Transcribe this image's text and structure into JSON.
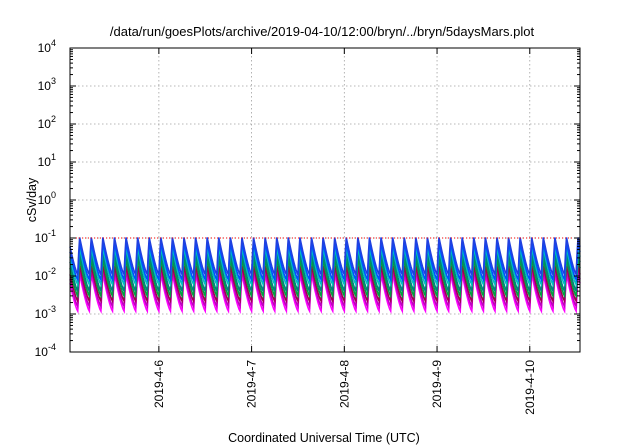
{
  "chart_data": {
    "type": "line",
    "title": "/data/run/goesPlots/archive/2019-04-10/12:00/bryn/../bryn/5daysMars.plot",
    "xlabel": "Coordinated Universal Time (UTC)",
    "ylabel": "cSv/day",
    "y_scale": "log",
    "ylim": [
      0.0001,
      10000
    ],
    "y_ticks": [
      {
        "value": 0.0001,
        "base": "10",
        "exp": "-4"
      },
      {
        "value": 0.001,
        "base": "10",
        "exp": "-3"
      },
      {
        "value": 0.01,
        "base": "10",
        "exp": "-2"
      },
      {
        "value": 0.1,
        "base": "10",
        "exp": "-1"
      },
      {
        "value": 1,
        "base": "10",
        "exp": "0"
      },
      {
        "value": 10,
        "base": "10",
        "exp": "1"
      },
      {
        "value": 100,
        "base": "10",
        "exp": "2"
      },
      {
        "value": 1000,
        "base": "10",
        "exp": "3"
      },
      {
        "value": 10000,
        "base": "10",
        "exp": "4"
      }
    ],
    "xlim": [
      "2019-04-05T01:00",
      "2019-04-10T13:00"
    ],
    "x_ticks": [
      "2019-4-6",
      "2019-4-7",
      "2019-4-8",
      "2019-4-9",
      "2019-4-10"
    ],
    "grid": true,
    "reference_line": {
      "value": 0.1,
      "color": "#ff0000",
      "style": "dotted"
    },
    "pattern": {
      "period_hours": 3,
      "start": "2019-04-05T00:00"
    },
    "series": [
      {
        "color": "#ff00ff",
        "min": 0.0012,
        "max": 0.012
      },
      {
        "color": "#c000c0",
        "min": 0.0016,
        "max": 0.015
      },
      {
        "color": "#a00050",
        "min": 0.0022,
        "max": 0.02
      },
      {
        "color": "#00a040",
        "min": 0.003,
        "max": 0.03
      },
      {
        "color": "#008080",
        "min": 0.004,
        "max": 0.045
      },
      {
        "color": "#00c0c0",
        "min": 0.006,
        "max": 0.06
      },
      {
        "color": "#0050ff",
        "min": 0.008,
        "max": 0.08
      },
      {
        "color": "#2040e0",
        "min": 0.011,
        "max": 0.11
      }
    ]
  }
}
